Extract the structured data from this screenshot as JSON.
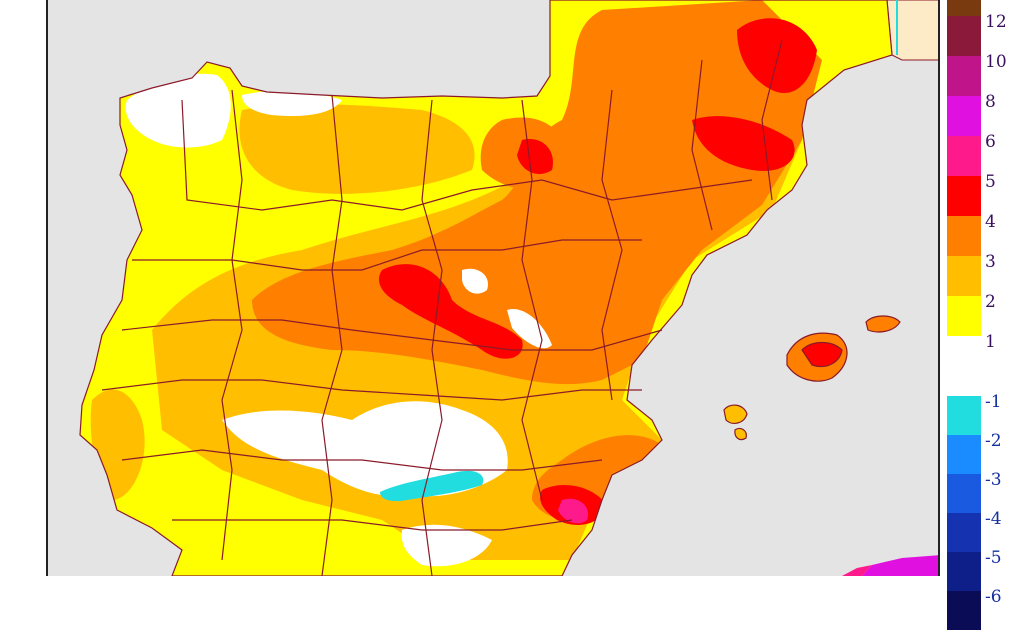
{
  "legend": {
    "positive": [
      {
        "label": "12",
        "color": "#8b1a3a"
      },
      {
        "label": "10",
        "color": "#c0158a"
      },
      {
        "label": "8",
        "color": "#e010e0"
      },
      {
        "label": "6",
        "color": "#ff1a8c"
      },
      {
        "label": "5",
        "color": "#ff0000"
      },
      {
        "label": "4",
        "color": "#ff7f00"
      },
      {
        "label": "3",
        "color": "#ffbf00"
      },
      {
        "label": "2",
        "color": "#ffff00"
      },
      {
        "label": "1",
        "color": "#ffffff"
      }
    ],
    "top_color": "#7a3a10",
    "positive_label_color": "#3a1060",
    "negative": [
      {
        "label": "-1",
        "color": "#22dde0"
      },
      {
        "label": "-2",
        "color": "#1b8cff"
      },
      {
        "label": "-3",
        "color": "#1a5ae0"
      },
      {
        "label": "-4",
        "color": "#1533b0"
      },
      {
        "label": "-5",
        "color": "#0f1f8a"
      },
      {
        "label": "-6",
        "color": "#0a0d55"
      }
    ],
    "negative_label_color": "#1530a0"
  },
  "map": {
    "sea_color": "#e4e4e4",
    "france_color": "#fdebc8",
    "border_color": "#8b1a2a",
    "fill_colors": {
      "neutral": "#ffffff",
      "plus_1_2": "#ffff00",
      "plus_2_3": "#ffbf00",
      "plus_3_4": "#ff7f00",
      "plus_4_5": "#ff0000",
      "plus_5_6": "#ff1a8c",
      "plus_6_8": "#e010e0",
      "minus_1_2": "#22dde0"
    }
  }
}
